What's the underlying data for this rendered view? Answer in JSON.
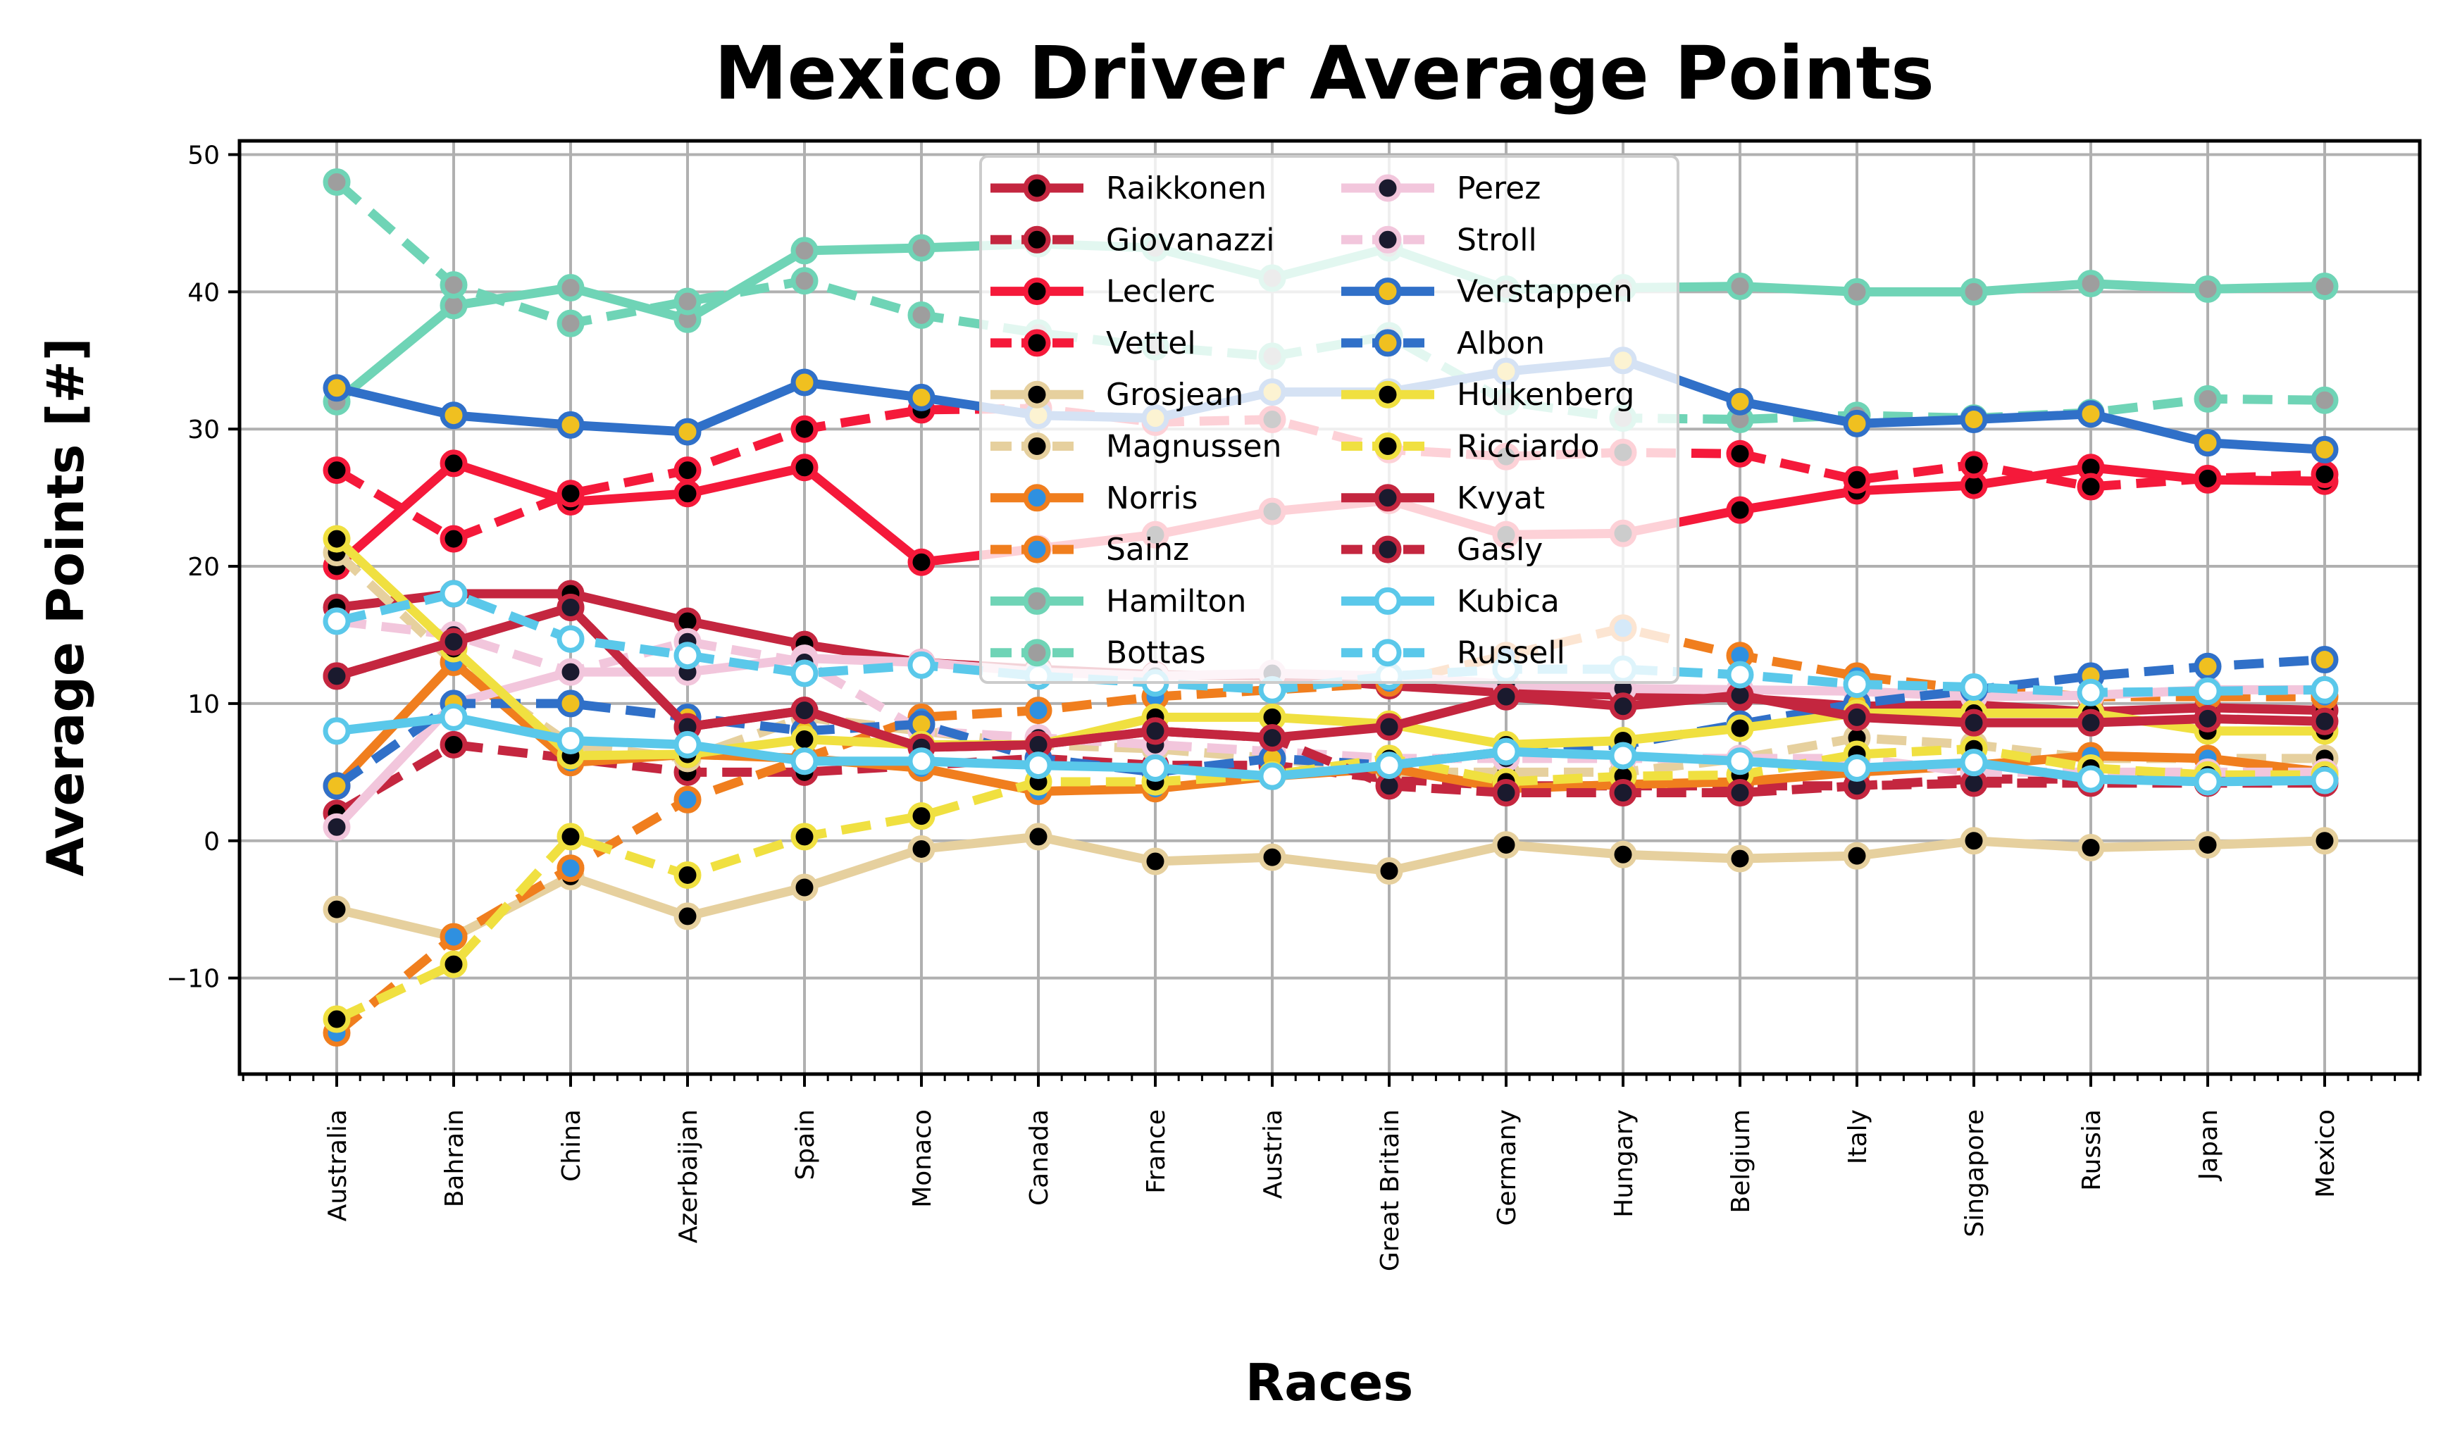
{
  "chart_data": {
    "type": "line",
    "title": "Mexico Driver Average Points",
    "xlabel": "Races",
    "ylabel": "Average Points [#]",
    "ylim": [
      -17,
      51
    ],
    "yticks": [
      -10,
      0,
      10,
      20,
      30,
      40,
      50
    ],
    "ytick_labels": [
      "−10",
      "0",
      "10",
      "20",
      "30",
      "40",
      "50"
    ],
    "grid": true,
    "legend_position": "upper-center",
    "legend_columns": 2,
    "categories": [
      "Australia",
      "Bahrain",
      "China",
      "Azerbaijan",
      "Spain",
      "Monaco",
      "Canada",
      "France",
      "Austria",
      "Great Britain",
      "Germany",
      "Hungary",
      "Belgium",
      "Italy",
      "Singapore",
      "Russia",
      "Japan",
      "Mexico"
    ],
    "series": [
      {
        "name": "Raikkonen",
        "color": "#c4263f",
        "marker": "#000000",
        "dash": "solid",
        "values": [
          17,
          18,
          18,
          16,
          14.3,
          13,
          12.5,
          12.1,
          12,
          11.3,
          10.8,
          10.6,
          10.4,
          9.8,
          9.9,
          9.4,
          9.7,
          9.5
        ]
      },
      {
        "name": "Giovanazzi",
        "color": "#c4263f",
        "marker": "#000000",
        "dash": "dashed",
        "values": [
          2,
          7,
          6,
          5,
          5,
          5.5,
          6,
          5.5,
          5.5,
          4.5,
          4,
          4,
          4,
          4,
          4.5,
          4.5,
          4.5,
          4.5
        ]
      },
      {
        "name": "Leclerc",
        "color": "#f5193a",
        "marker": "#000000",
        "dash": "solid",
        "values": [
          20,
          27.5,
          24.7,
          25.3,
          27.2,
          20.3,
          21.3,
          22.3,
          24,
          24.8,
          22.3,
          22.4,
          24.1,
          25.5,
          25.9,
          27.2,
          26.3,
          26.2
        ]
      },
      {
        "name": "Vettel",
        "color": "#f5193a",
        "marker": "#000000",
        "dash": "dashed",
        "values": [
          27,
          22,
          25.3,
          27,
          30,
          31.4,
          31.5,
          30.5,
          30.7,
          28.5,
          28,
          28.3,
          28.2,
          26.3,
          27.4,
          25.8,
          26.4,
          26.7
        ]
      },
      {
        "name": "Grosjean",
        "color": "#e6d09e",
        "marker": "#000000",
        "dash": "solid",
        "values": [
          -5,
          -7,
          -2.6,
          -5.5,
          -3.4,
          -0.6,
          0.3,
          -1.5,
          -1.2,
          -2.2,
          -0.3,
          -1,
          -1.3,
          -1.1,
          0,
          -0.5,
          -0.3,
          0
        ]
      },
      {
        "name": "Magnussen",
        "color": "#e6d09e",
        "marker": "#000000",
        "dash": "dashed",
        "values": [
          21,
          13,
          7,
          6,
          9,
          8,
          7,
          6.7,
          6,
          5,
          5,
          5,
          6,
          7.5,
          7,
          6,
          6,
          6
        ]
      },
      {
        "name": "Norris",
        "color": "#f07e1e",
        "marker": "#2f90e0",
        "dash": "solid",
        "values": [
          4,
          13,
          5.7,
          6.3,
          6,
          5.3,
          3.6,
          3.8,
          4.7,
          5.3,
          3.8,
          4.1,
          4.3,
          5,
          5.5,
          6.2,
          6,
          5
        ]
      },
      {
        "name": "Sainz",
        "color": "#f07e1e",
        "marker": "#2f90e0",
        "dash": "dashed",
        "values": [
          -14,
          -7,
          -2,
          3,
          6,
          9,
          9.5,
          10.5,
          11,
          11.5,
          13.5,
          15.5,
          13.5,
          12,
          11,
          10.5,
          10.5,
          10.5
        ]
      },
      {
        "name": "Hamilton",
        "color": "#6fd4b6",
        "marker": "#9e9e9e",
        "dash": "solid",
        "values": [
          32,
          39,
          40.3,
          38,
          43,
          43.2,
          43.5,
          43.2,
          41,
          43.2,
          40.2,
          40.3,
          40.4,
          40,
          40,
          40.6,
          40.2,
          40.4
        ]
      },
      {
        "name": "Bottas",
        "color": "#6fd4b6",
        "marker": "#9e9e9e",
        "dash": "dashed",
        "values": [
          48,
          40.5,
          37.7,
          39.3,
          40.8,
          38.3,
          37,
          36,
          35.3,
          36.8,
          32,
          30.8,
          30.7,
          31,
          30.8,
          31.2,
          32.2,
          32.1
        ]
      },
      {
        "name": "Perez",
        "color": "#f2c6dc",
        "marker": "#1a1a2e",
        "dash": "solid",
        "values": [
          1,
          10,
          12.3,
          12.3,
          13.3,
          13,
          12.3,
          12,
          12.2,
          12,
          11.4,
          11.1,
          11,
          10.9,
          10.5,
          10.6,
          11,
          11
        ]
      },
      {
        "name": "Stroll",
        "color": "#f2c6dc",
        "marker": "#1a1a2e",
        "dash": "dashed",
        "values": [
          16,
          15,
          12.3,
          14.5,
          13,
          8,
          7.5,
          7,
          6.5,
          6,
          6,
          6,
          6,
          6,
          5,
          5,
          5,
          5
        ]
      },
      {
        "name": "Verstappen",
        "color": "#3070c8",
        "marker": "#f0c020",
        "dash": "solid",
        "values": [
          33,
          31,
          30.3,
          29.8,
          33.4,
          32.3,
          31,
          30.8,
          32.7,
          32.7,
          34.2,
          35,
          32,
          30.4,
          30.7,
          31.1,
          29,
          28.5
        ]
      },
      {
        "name": "Albon",
        "color": "#3070c8",
        "marker": "#f0c020",
        "dash": "dashed",
        "values": [
          4,
          10,
          10,
          9,
          8,
          8.5,
          6,
          5,
          6,
          5.5,
          6.5,
          7,
          8.5,
          10,
          11,
          12,
          12.7,
          13.2
        ]
      },
      {
        "name": "Hulkenberg",
        "color": "#f0e040",
        "marker": "#000000",
        "dash": "solid",
        "values": [
          22,
          14,
          6.2,
          6.3,
          7.4,
          7,
          7,
          9,
          9,
          8.5,
          7,
          7.3,
          8.2,
          9.3,
          9.3,
          9.3,
          8,
          8
        ]
      },
      {
        "name": "Ricciardo",
        "color": "#f0e040",
        "marker": "#000000",
        "dash": "dashed",
        "values": [
          -13,
          -9,
          0.3,
          -2.5,
          0.3,
          1.8,
          4.3,
          4.3,
          4.8,
          6,
          4.3,
          4.7,
          4.8,
          6.3,
          6.7,
          5.3,
          4.8,
          4.8
        ]
      },
      {
        "name": "Kvyat",
        "color": "#c4263f",
        "marker": "#1a1a2e",
        "dash": "solid",
        "values": [
          12,
          14.5,
          17,
          8.3,
          9.5,
          6.8,
          7,
          8,
          7.5,
          8.3,
          10.5,
          9.8,
          10.6,
          9,
          8.6,
          8.6,
          8.9,
          8.7
        ]
      },
      {
        "name": "Gasly",
        "color": "#c4263f",
        "marker": "#1a1a2e",
        "dash": "dashed",
        "values": [
          12,
          14.5,
          17,
          8.3,
          9.5,
          6.8,
          7,
          8,
          7.5,
          4,
          3.5,
          3.5,
          3.5,
          4,
          4.2,
          4.2,
          4.2,
          4.2
        ]
      },
      {
        "name": "Kubica",
        "color": "#5ac8ea",
        "marker": "#ffffff",
        "dash": "solid",
        "values": [
          8,
          9,
          7.3,
          7,
          5.8,
          5.8,
          5.5,
          5.3,
          4.7,
          5.5,
          6.5,
          6.2,
          5.8,
          5.3,
          5.7,
          4.5,
          4.3,
          4.4
        ]
      },
      {
        "name": "Russell",
        "color": "#5ac8ea",
        "marker": "#ffffff",
        "dash": "dashed",
        "values": [
          16,
          18,
          14.7,
          13.5,
          12.2,
          12.8,
          12,
          11.5,
          11,
          12,
          12.5,
          12.5,
          12.1,
          11.4,
          11.2,
          10.8,
          10.9,
          11
        ]
      }
    ]
  }
}
